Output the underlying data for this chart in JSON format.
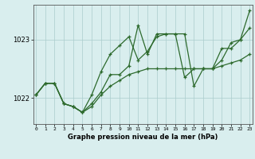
{
  "xlabel": "Graphe pression niveau de la mer (hPa)",
  "hours": [
    0,
    1,
    2,
    3,
    4,
    5,
    6,
    7,
    8,
    9,
    10,
    11,
    12,
    13,
    14,
    15,
    16,
    17,
    18,
    19,
    20,
    21,
    22,
    23
  ],
  "line1": [
    1022.05,
    1022.25,
    1022.25,
    1021.9,
    1021.85,
    1021.75,
    1021.85,
    1022.05,
    1022.2,
    1022.3,
    1022.4,
    1022.45,
    1022.5,
    1022.5,
    1022.5,
    1022.5,
    1022.5,
    1022.5,
    1022.5,
    1022.5,
    1022.55,
    1022.6,
    1022.65,
    1022.75
  ],
  "line2": [
    1022.05,
    1022.25,
    1022.25,
    1021.9,
    1021.85,
    1021.75,
    1022.05,
    1022.45,
    1022.75,
    1022.9,
    1023.05,
    1022.65,
    1022.8,
    1023.05,
    1023.1,
    1023.1,
    1022.35,
    1022.5,
    1022.5,
    1022.5,
    1022.65,
    1022.95,
    1023.0,
    1023.2
  ],
  "line3": [
    1022.05,
    1022.25,
    1022.25,
    1021.9,
    1021.85,
    1021.75,
    1021.9,
    1022.1,
    1022.4,
    1022.4,
    1022.55,
    1023.25,
    1022.75,
    1023.1,
    1023.1,
    1023.1,
    1023.1,
    1022.2,
    1022.5,
    1022.5,
    1022.85,
    1022.85,
    1023.0,
    1023.5
  ],
  "line_color": "#2d6a2d",
  "bg_color": "#d9eeee",
  "grid_color": "#aacccc",
  "ylim": [
    1021.55,
    1023.6
  ],
  "yticks": [
    1022.0,
    1023.0
  ],
  "xlim": [
    -0.3,
    23.3
  ]
}
